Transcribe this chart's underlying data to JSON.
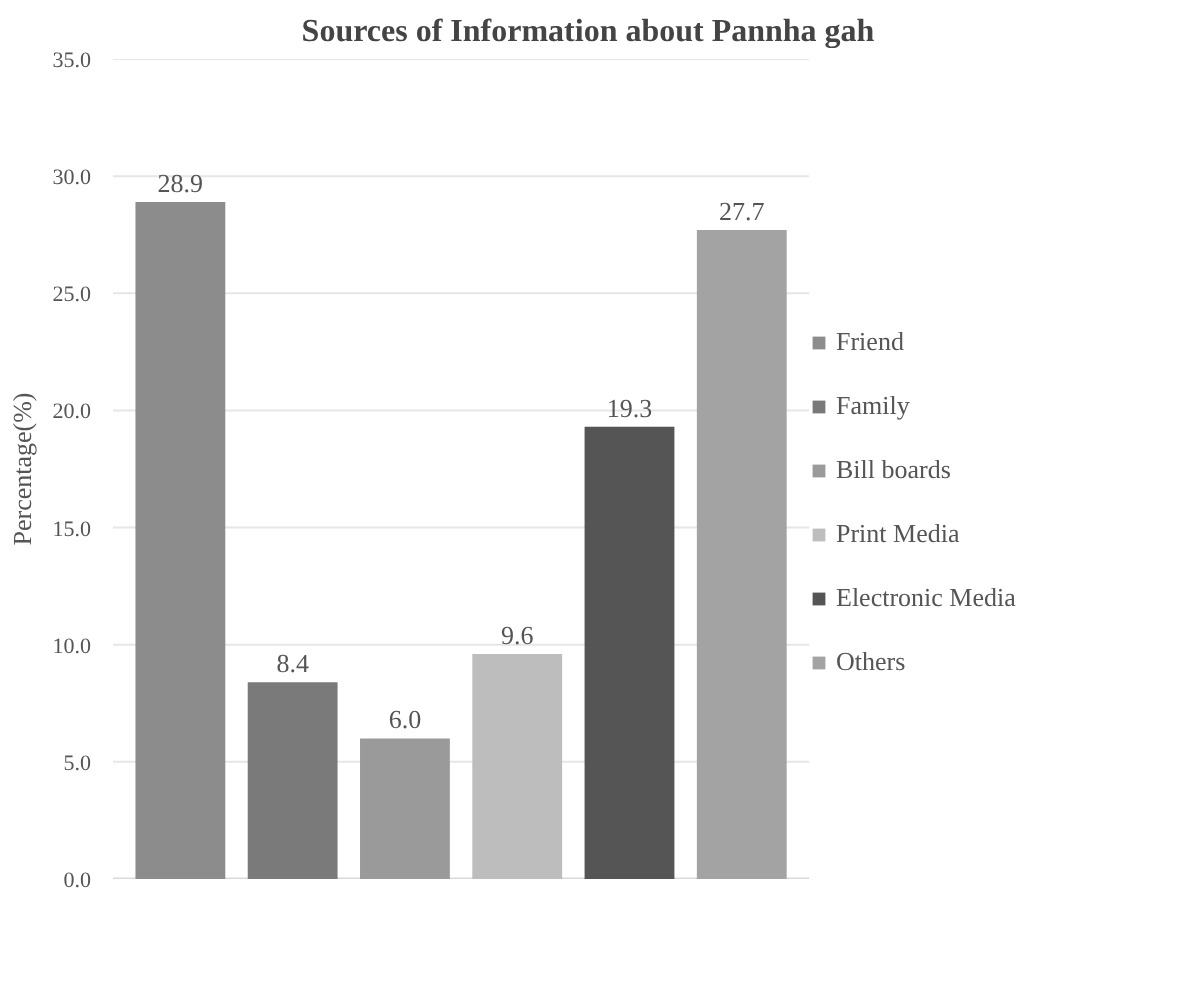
{
  "chart_data": {
    "type": "bar",
    "title": "Sources of Information about Pannha gah",
    "ylabel": "Percentage(%)",
    "categories": [
      null,
      null,
      null,
      null,
      null,
      null
    ],
    "series": [
      {
        "name": "Friend",
        "color": "#8c8c8c",
        "values": [
          28.9,
          null,
          null,
          null,
          null,
          null
        ],
        "value_labels": [
          "28.9",
          null,
          null,
          null,
          null,
          null
        ]
      },
      {
        "name": "Family",
        "color": "#7a7a7a",
        "values": [
          null,
          8.4,
          null,
          null,
          null,
          null
        ],
        "value_labels": [
          null,
          "8.4",
          null,
          null,
          null,
          null
        ]
      },
      {
        "name": "Bill boards",
        "color": "#9a9a9a",
        "values": [
          null,
          null,
          6.0,
          null,
          null,
          null
        ],
        "value_labels": [
          null,
          null,
          "6.0",
          null,
          null,
          null
        ]
      },
      {
        "name": "Print Media",
        "color": "#bdbdbd",
        "values": [
          null,
          null,
          null,
          9.6,
          null,
          null
        ],
        "value_labels": [
          null,
          null,
          null,
          "9.6",
          null,
          null
        ]
      },
      {
        "name": "Electronic Media",
        "color": "#555555",
        "values": [
          null,
          null,
          null,
          null,
          19.3,
          null
        ],
        "value_labels": [
          null,
          null,
          null,
          null,
          "19.3",
          null
        ]
      },
      {
        "name": "Others",
        "color": "#a3a3a3",
        "values": [
          null,
          null,
          null,
          null,
          null,
          27.7
        ],
        "value_labels": [
          null,
          null,
          null,
          null,
          null,
          "27.7"
        ]
      }
    ],
    "ylim": [
      0,
      35
    ],
    "yticks": [
      {
        "value": 0,
        "label": "0.0"
      },
      {
        "value": 5,
        "label": "5.0"
      },
      {
        "value": 10,
        "label": "10.0"
      },
      {
        "value": 15,
        "label": "15.0"
      },
      {
        "value": 20,
        "label": "20.0"
      },
      {
        "value": 25,
        "label": "25.0"
      },
      {
        "value": 30,
        "label": "30.0"
      },
      {
        "value": 35,
        "label": "35.0"
      }
    ],
    "grid": "y",
    "legend": "right"
  }
}
